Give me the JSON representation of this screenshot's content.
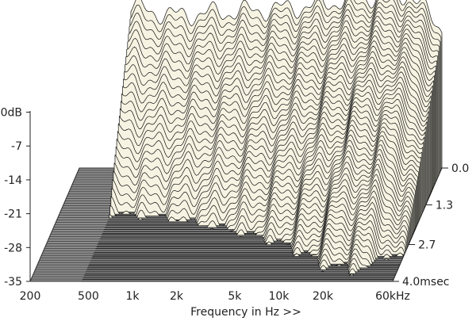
{
  "chart_data": {
    "type": "waterfall",
    "title": "",
    "xlabel": "Frequency in Hz >>",
    "ylabel": "",
    "zlabel": "",
    "x_scale": "log",
    "xlim": [
      200,
      60000
    ],
    "ylim": [
      -35,
      0
    ],
    "x_ticks": [
      {
        "value": 200,
        "label": "200"
      },
      {
        "value": 500,
        "label": "500"
      },
      {
        "value": 1000,
        "label": "1k"
      },
      {
        "value": 2000,
        "label": "2k"
      },
      {
        "value": 5000,
        "label": "5k"
      },
      {
        "value": 10000,
        "label": "10k"
      },
      {
        "value": 20000,
        "label": "20k"
      },
      {
        "value": 60000,
        "label": "60kHz"
      }
    ],
    "y_ticks": [
      {
        "value": 0,
        "label": "0dB"
      },
      {
        "value": -7,
        "label": "-7"
      },
      {
        "value": -14,
        "label": "-14"
      },
      {
        "value": -21,
        "label": "-21"
      },
      {
        "value": -28,
        "label": "-28"
      },
      {
        "value": -35,
        "label": "-35"
      }
    ],
    "time_ticks": [
      {
        "value": 0.0,
        "label": "0.0"
      },
      {
        "value": 1.3,
        "label": "1.3"
      },
      {
        "value": 2.7,
        "label": "2.7"
      },
      {
        "value": 4.0,
        "label": "4.0msec"
      }
    ],
    "time_range_ms": [
      0,
      4.0
    ],
    "slice_count": 60,
    "low_cutoff_hz": 450,
    "initial_response": [
      {
        "freq": 450,
        "db": -1.5
      },
      {
        "freq": 600,
        "db": -2.5
      },
      {
        "freq": 900,
        "db": -3.5
      },
      {
        "freq": 1500,
        "db": -3.0
      },
      {
        "freq": 3000,
        "db": -2.5
      },
      {
        "freq": 5000,
        "db": -2.0
      },
      {
        "freq": 8000,
        "db": -1.5
      },
      {
        "freq": 12000,
        "db": -0.5
      },
      {
        "freq": 20000,
        "db": 0.5
      },
      {
        "freq": 35000,
        "db": 1.0
      },
      {
        "freq": 45000,
        "db": -2.0
      },
      {
        "freq": 60000,
        "db": -6.0
      }
    ],
    "floor_db": -35,
    "colors": {
      "surface": "#f6f3e2",
      "slice_line": "#111111",
      "floor": "#8a8a8a",
      "floor_line": "#2f2f2f"
    }
  }
}
